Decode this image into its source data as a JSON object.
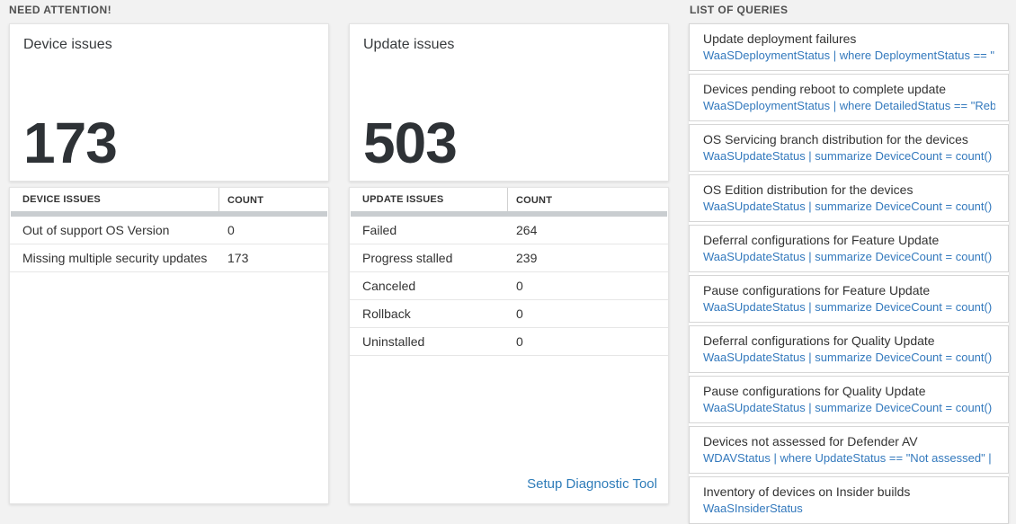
{
  "colors": {
    "background": "#f2f2f2",
    "accent_blue": "#3379bd",
    "heading_gray": "#4f4f4f",
    "number_dark": "#2e3236",
    "scrollbar_gray": "#c9cdd0"
  },
  "need_attention": {
    "heading": "NEED ATTENTION!",
    "device_card": {
      "title": "Device issues",
      "big_number": "173",
      "table": {
        "headers": [
          "DEVICE ISSUES",
          "COUNT"
        ],
        "rows": [
          [
            "Out of support OS Version",
            "0"
          ],
          [
            "Missing multiple security updates",
            "173"
          ]
        ]
      }
    },
    "update_card": {
      "title": "Update issues",
      "big_number": "503",
      "table": {
        "headers": [
          "UPDATE ISSUES",
          "COUNT"
        ],
        "rows": [
          [
            "Failed",
            "264"
          ],
          [
            "Progress stalled",
            "239"
          ],
          [
            "Canceled",
            "0"
          ],
          [
            "Rollback",
            "0"
          ],
          [
            "Uninstalled",
            "0"
          ]
        ]
      },
      "footer_link": "Setup Diagnostic Tool"
    }
  },
  "queries": {
    "heading": "LIST OF QUERIES",
    "items": [
      {
        "title": "Update deployment failures",
        "query": "WaaSDeploymentStatus | where DeploymentStatus == \"Failed\" |..."
      },
      {
        "title": "Devices pending reboot to complete update",
        "query": "WaaSDeploymentStatus | where DetailedStatus == \"Reboot pend..."
      },
      {
        "title": "OS Servicing branch distribution for the devices",
        "query": "WaaSUpdateStatus | summarize DeviceCount = count() by OSSer..."
      },
      {
        "title": "OS Edition distribution for the devices",
        "query": "WaaSUpdateStatus | summarize DeviceCount = count() by OSEdit..."
      },
      {
        "title": "Deferral configurations for Feature Update",
        "query": "WaaSUpdateStatus | summarize DeviceCount = count() by Featur..."
      },
      {
        "title": "Pause configurations for Feature Update",
        "query": "WaaSUpdateStatus | summarize DeviceCount = count() by Featur..."
      },
      {
        "title": "Deferral configurations for Quality Update",
        "query": "WaaSUpdateStatus | summarize DeviceCount = count() by Qualit..."
      },
      {
        "title": "Pause configurations for Quality Update",
        "query": "WaaSUpdateStatus | summarize DeviceCount = count() by Qualit..."
      },
      {
        "title": "Devices not assessed for Defender AV",
        "query": "WDAVStatus | where UpdateStatus == \"Not assessed\" | render ta..."
      },
      {
        "title": "Inventory of devices on Insider builds",
        "query": "WaaSInsiderStatus"
      }
    ]
  }
}
